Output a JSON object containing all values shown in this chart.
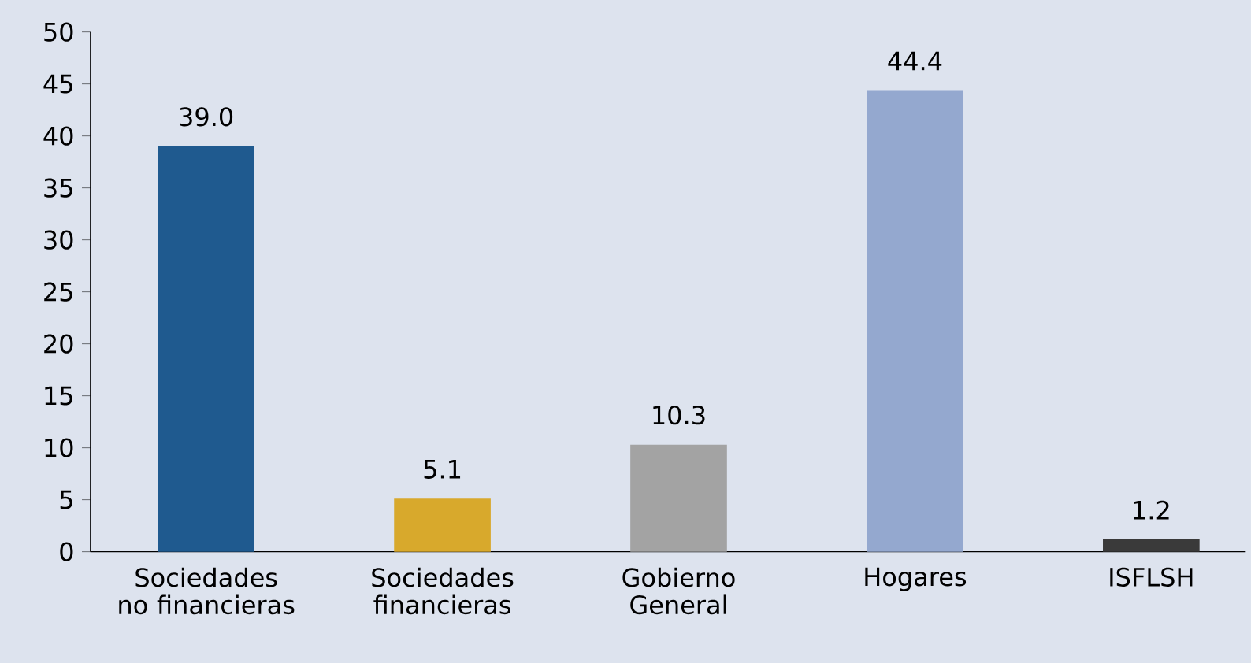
{
  "chart_data": {
    "type": "bar",
    "categories": [
      "Sociedades no financieras",
      "Sociedades financieras",
      "Gobierno General",
      "Hogares",
      "ISFLSH"
    ],
    "values": [
      39.0,
      5.1,
      10.3,
      44.4,
      1.2
    ],
    "colors": [
      "#1f5a8f",
      "#d8a92c",
      "#a3a3a3",
      "#94a8cf",
      "#3a3a3a"
    ],
    "value_labels": [
      "39.0",
      "5.1",
      "10.3",
      "44.4",
      "1.2"
    ],
    "ylim": [
      0,
      50
    ],
    "yticks": [
      0,
      5,
      10,
      15,
      20,
      25,
      30,
      35,
      40,
      45,
      50
    ]
  }
}
